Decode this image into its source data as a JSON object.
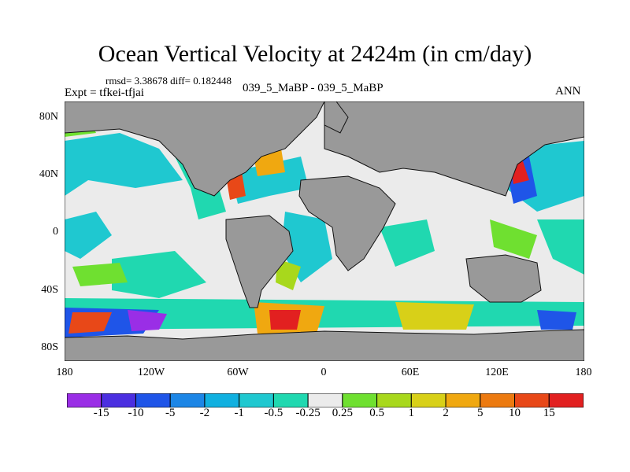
{
  "map": {
    "title": "Ocean Vertical Velocity at 2424m (in cm/day)",
    "stats_text": "rmsd= 3.38678 diff= 0.182448",
    "expt_text": "Expt = tfkei-tfjai",
    "subtitle": "039_5_MaBP - 039_5_MaBP",
    "season": "ANN",
    "lat_ticks": [
      "80N",
      "40N",
      "0",
      "40S",
      "80S"
    ],
    "lon_ticks": [
      "180",
      "120W",
      "60W",
      "0",
      "60E",
      "120E",
      "180"
    ],
    "colors": {
      "land": "#999999",
      "near_zero": "#ebebeb"
    }
  },
  "colorbar": {
    "labels": [
      "-15",
      "-10",
      "-5",
      "-2",
      "-1",
      "-0.5",
      "-0.25",
      "0.25",
      "0.5",
      "1",
      "2",
      "5",
      "10",
      "15"
    ],
    "colors": [
      "#9a2ee6",
      "#4b2fe0",
      "#1f55e8",
      "#1c86e6",
      "#10b0e0",
      "#1fc8d0",
      "#20d8b0",
      "#ebebeb",
      "#6fe030",
      "#a8d81c",
      "#d8d018",
      "#f0a810",
      "#ec7a10",
      "#e84818",
      "#e22020"
    ]
  }
}
